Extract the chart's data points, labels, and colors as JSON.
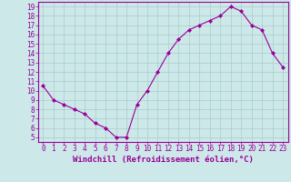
{
  "x": [
    0,
    1,
    2,
    3,
    4,
    5,
    6,
    7,
    8,
    9,
    10,
    11,
    12,
    13,
    14,
    15,
    16,
    17,
    18,
    19,
    20,
    21,
    22,
    23
  ],
  "y": [
    10.5,
    9.0,
    8.5,
    8.0,
    7.5,
    6.5,
    6.0,
    5.0,
    5.0,
    8.5,
    10.0,
    12.0,
    14.0,
    15.5,
    16.5,
    17.0,
    17.5,
    18.0,
    19.0,
    18.5,
    17.0,
    16.5,
    14.0,
    12.5
  ],
  "line_color": "#990099",
  "marker": "D",
  "marker_size": 2,
  "bg_color": "#cce8e8",
  "grid_color": "#aacccc",
  "xlabel": "Windchill (Refroidissement éolien,°C)",
  "xlim_min": -0.5,
  "xlim_max": 23.5,
  "ylim_min": 4.5,
  "ylim_max": 19.5,
  "yticks": [
    5,
    6,
    7,
    8,
    9,
    10,
    11,
    12,
    13,
    14,
    15,
    16,
    17,
    18,
    19
  ],
  "xticks": [
    0,
    1,
    2,
    3,
    4,
    5,
    6,
    7,
    8,
    9,
    10,
    11,
    12,
    13,
    14,
    15,
    16,
    17,
    18,
    19,
    20,
    21,
    22,
    23
  ],
  "tick_color": "#990099",
  "label_color": "#990099",
  "spine_color": "#990099",
  "font_size": 5.5,
  "xlabel_font_size": 6.5
}
